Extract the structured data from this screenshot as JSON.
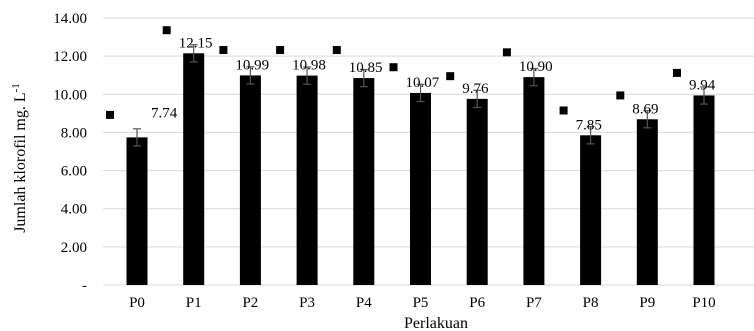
{
  "chart_data": {
    "type": "bar",
    "categories": [
      "P0",
      "P1",
      "P2",
      "P3",
      "P4",
      "P5",
      "P6",
      "P7",
      "P8",
      "P9",
      "P10"
    ],
    "values": [
      7.74,
      12.15,
      10.99,
      10.98,
      10.85,
      10.07,
      9.76,
      10.9,
      7.85,
      8.69,
      9.94
    ],
    "value_labels": [
      "7.74",
      "12.15",
      "10.99",
      "10.98",
      "10.85",
      "10.07",
      "9.76",
      "10.90",
      "7.85",
      "8.69",
      "9.94"
    ],
    "errors": [
      0.45,
      0.45,
      0.45,
      0.45,
      0.45,
      0.45,
      0.45,
      0.45,
      0.45,
      0.45,
      0.45
    ],
    "markers": [
      8.92,
      13.36,
      12.32,
      12.32,
      12.32,
      11.42,
      10.95,
      12.2,
      9.15,
      9.94,
      11.12
    ],
    "xlabel": "Perlakuan",
    "ylabel": "Jumlah klorofil mg. L",
    "ylabel_superscript": "-1",
    "ylim": [
      0,
      14
    ],
    "yticks": [
      {
        "value": 0,
        "label": "-"
      },
      {
        "value": 2,
        "label": "2.00"
      },
      {
        "value": 4,
        "label": "4.00"
      },
      {
        "value": 6,
        "label": "6.00"
      },
      {
        "value": 8,
        "label": "8.00"
      },
      {
        "value": 10,
        "label": "10.00"
      },
      {
        "value": 12,
        "label": "12.00"
      },
      {
        "value": 14,
        "label": "14.00"
      }
    ],
    "grid": true,
    "colors": {
      "bar": "#000000",
      "grid": "#d9d9d9",
      "marker": "#000000",
      "error": "#555555"
    }
  }
}
